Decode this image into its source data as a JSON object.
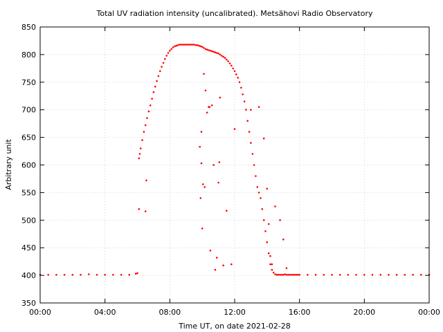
{
  "chart_data": {
    "type": "scatter",
    "title": "Total UV radiation intensity (uncalibrated). Metsähovi Radio Observatory",
    "xlabel": "Time UT, on date 2021-02-28",
    "ylabel": "Arbitrary unit",
    "xlim_hours": [
      0,
      24
    ],
    "ylim": [
      350,
      850
    ],
    "xticks": [
      {
        "hour": 0,
        "label": "00:00"
      },
      {
        "hour": 4,
        "label": "04:00"
      },
      {
        "hour": 8,
        "label": "08:00"
      },
      {
        "hour": 12,
        "label": "12:00"
      },
      {
        "hour": 16,
        "label": "16:00"
      },
      {
        "hour": 20,
        "label": "20:00"
      },
      {
        "hour": 24,
        "label": "00:00"
      }
    ],
    "yticks": [
      350,
      400,
      450,
      500,
      550,
      600,
      650,
      700,
      750,
      800,
      850
    ],
    "grid": true,
    "marker_color": "#ff0000",
    "series": [
      {
        "x_hours": [
          0.0,
          0.5,
          1.0,
          1.5,
          2.0,
          2.5,
          3.0,
          3.5,
          4.0,
          4.5,
          5.0,
          5.5,
          5.9,
          6.0,
          6.1,
          6.15,
          6.2,
          6.3,
          6.4,
          6.5,
          6.6,
          6.7,
          6.8,
          6.9,
          7.0,
          7.1,
          7.2,
          7.3,
          7.4,
          7.5,
          7.6,
          7.7,
          7.8,
          7.9,
          8.0,
          8.1,
          8.2,
          8.3,
          8.4,
          8.5,
          8.6,
          8.7,
          8.8,
          8.9,
          9.0,
          9.1,
          9.2,
          9.3,
          9.4,
          9.5,
          9.6,
          9.7,
          9.8,
          9.9,
          10.0,
          10.1,
          10.2,
          10.3,
          10.4,
          10.5,
          10.6,
          10.7,
          10.8,
          10.9,
          11.0,
          11.1,
          11.2,
          11.3,
          11.4,
          11.5,
          11.6,
          11.7,
          11.8,
          11.9,
          12.0,
          12.1,
          12.2,
          12.3,
          12.4,
          12.5,
          12.6,
          12.7,
          12.8,
          12.9,
          13.0,
          13.1,
          13.2,
          13.3,
          13.4,
          13.5,
          13.6,
          13.7,
          13.8,
          13.9,
          14.0,
          14.1,
          14.2,
          14.3,
          14.4,
          14.5,
          14.6,
          14.7,
          14.8,
          14.9,
          15.0,
          15.1,
          15.2,
          15.3,
          15.4,
          15.5,
          15.6,
          15.7,
          15.8,
          15.9,
          16.0,
          16.5,
          17.0,
          17.5,
          18.0,
          18.5,
          19.0,
          19.5,
          20.0,
          20.5,
          21.0,
          21.5,
          22.0,
          22.5,
          23.0,
          23.5,
          24.0,
          6.1,
          6.5,
          6.55,
          9.85,
          9.9,
          9.95,
          10.0,
          10.05,
          10.1,
          10.2,
          10.3,
          10.4,
          10.5,
          10.6,
          10.7,
          10.8,
          10.9,
          11.0,
          11.1,
          11.3,
          11.5,
          11.8,
          12.0,
          13.0,
          13.5,
          13.8,
          14.0,
          14.1,
          14.2,
          14.3,
          14.5,
          14.8,
          15.0,
          15.2,
          10.45,
          10.15,
          9.95,
          11.05
        ],
        "y": [
          401,
          401,
          401,
          401,
          401,
          401,
          402,
          401,
          401,
          401,
          401,
          401,
          403,
          404,
          612,
          620,
          630,
          645,
          660,
          672,
          685,
          697,
          708,
          720,
          732,
          742,
          752,
          761,
          770,
          778,
          785,
          792,
          798,
          803,
          807,
          810,
          813,
          815,
          816,
          817,
          818,
          818,
          818,
          818,
          818,
          818,
          818,
          818,
          818,
          818,
          817,
          817,
          816,
          815,
          814,
          812,
          810,
          809,
          808,
          807,
          806,
          805,
          804,
          803,
          802,
          800,
          798,
          796,
          794,
          791,
          788,
          784,
          780,
          775,
          770,
          764,
          758,
          750,
          740,
          728,
          715,
          700,
          680,
          660,
          640,
          620,
          600,
          580,
          560,
          550,
          540,
          520,
          500,
          480,
          460,
          440,
          420,
          410,
          405,
          402,
          401,
          401,
          401,
          401,
          401,
          402,
          401,
          401,
          401,
          401,
          401,
          401,
          401,
          401,
          401,
          401,
          401,
          401,
          401,
          401,
          401,
          401,
          401,
          401,
          401,
          401,
          401,
          401,
          401,
          401,
          401,
          520,
          516,
          572,
          633,
          540,
          603,
          485,
          565,
          765,
          735,
          695,
          705,
          445,
          708,
          600,
          410,
          432,
          568,
          722,
          418,
          517,
          420,
          665,
          700,
          705,
          648,
          557,
          493,
          435,
          420,
          525,
          500,
          465,
          413,
          705,
          560,
          660,
          605
        ]
      }
    ]
  }
}
